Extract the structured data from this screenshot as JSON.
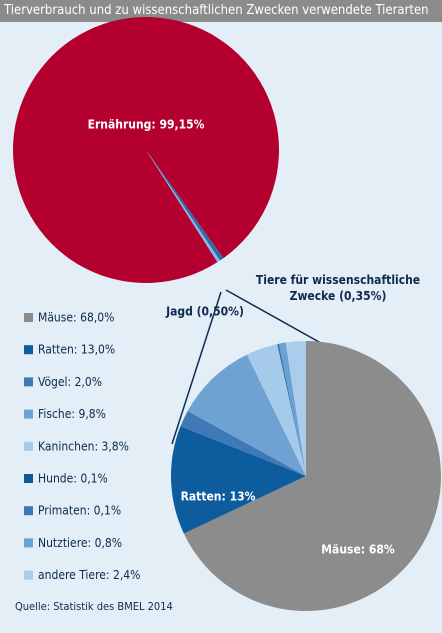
{
  "title": "Tierverbrauch und zu wissenschaftlichen Zwecken verwendete Tierarten",
  "source": "Quelle: Statistik des BMEL 2014",
  "chart_data": [
    {
      "type": "pie",
      "categories": [
        null,
        null,
        null
      ],
      "values": [
        99.15,
        0.5,
        0.35
      ],
      "value_labels": [
        "Ernährung: 99,15%",
        "Jagd (0,50%)",
        "Tiere für wissenschaftliche Zwecke (0,35%)"
      ],
      "colors": [
        "#b3002f",
        "#2c6cad",
        "#86b8e2"
      ]
    },
    {
      "type": "pie",
      "categories": [
        "Mäuse: 68,0%",
        "Ratten: 13,0%",
        "Vögel: 2,0%",
        "Fische: 9,8%",
        "Kaninchen: 3,8%",
        "Hunde: 0,1%",
        "Primaten: 0,1%",
        "Nutztiere: 0,8%",
        "andere Tiere: 2,4%"
      ],
      "values": [
        68.0,
        13.0,
        2.0,
        9.8,
        3.8,
        0.1,
        0.1,
        0.8,
        2.4
      ],
      "value_labels": [
        "Mäuse: 68%",
        "Ratten: 13%",
        null,
        null,
        null,
        null,
        null,
        null,
        null
      ],
      "colors": [
        "#8c8c8c",
        "#0d5c9e",
        "#3f7ab6",
        "#6ea2d2",
        "#a6cbea",
        "#0b5898",
        "#3d78b4",
        "#6aa2d4",
        "#a9cdea"
      ],
      "legend": "left"
    }
  ]
}
